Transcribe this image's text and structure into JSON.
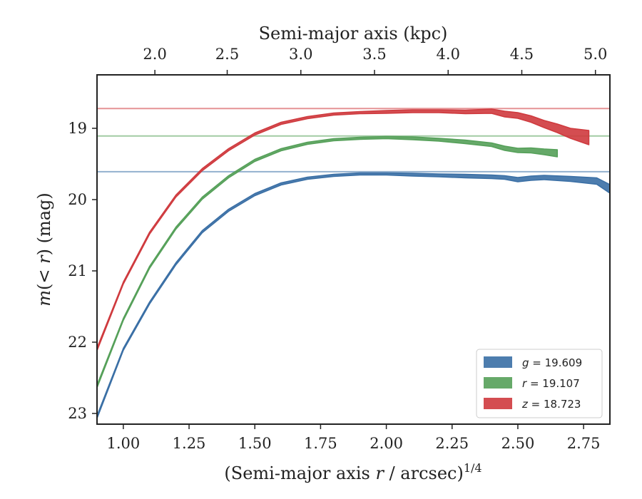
{
  "chart_data": {
    "type": "line",
    "xlabel": "(Semi-major axis r / arcsec)^1/4",
    "ylabel": "m(< r) (mag)",
    "top_xlabel": "Semi-major axis (kpc)",
    "xlim": [
      0.9,
      2.85
    ],
    "ylim": [
      23.15,
      18.25
    ],
    "y_inverted": true,
    "x_ticks": [
      "1.00",
      "1.25",
      "1.50",
      "1.75",
      "2.00",
      "2.25",
      "2.50",
      "2.75"
    ],
    "y_ticks": [
      "19",
      "20",
      "21",
      "22",
      "23"
    ],
    "top_x_ticks": [
      "2.0",
      "2.5",
      "3.0",
      "3.5",
      "4.0",
      "4.5",
      "5.0"
    ],
    "top_x_tick_positions": [
      1.12,
      1.395,
      1.675,
      1.955,
      2.235,
      2.515,
      2.795
    ],
    "legend_position": "lower-right",
    "grid": false,
    "series": [
      {
        "name": "g = 19.609",
        "legend_band": "g",
        "legend_value": "= 19.609",
        "color": "#3a6fa5",
        "asymptote": 19.609,
        "x": [
          0.9,
          1.0,
          1.1,
          1.2,
          1.3,
          1.4,
          1.5,
          1.6,
          1.7,
          1.8,
          1.9,
          2.0,
          2.1,
          2.2,
          2.3,
          2.4,
          2.45,
          2.5,
          2.55,
          2.6,
          2.7,
          2.8,
          2.85
        ],
        "y": [
          23.05,
          22.1,
          21.45,
          20.9,
          20.45,
          20.15,
          19.93,
          19.78,
          19.7,
          19.66,
          19.64,
          19.64,
          19.65,
          19.66,
          19.67,
          19.68,
          19.69,
          19.72,
          19.7,
          19.69,
          19.71,
          19.74,
          19.85
        ],
        "width": [
          0.04,
          0.03,
          0.03,
          0.03,
          0.03,
          0.03,
          0.03,
          0.03,
          0.03,
          0.03,
          0.03,
          0.03,
          0.04,
          0.04,
          0.05,
          0.05,
          0.05,
          0.06,
          0.06,
          0.06,
          0.07,
          0.09,
          0.12
        ]
      },
      {
        "name": "r = 19.107",
        "legend_band": "r",
        "legend_value": "= 19.107",
        "color": "#55a059",
        "asymptote": 19.107,
        "x": [
          0.9,
          1.0,
          1.1,
          1.2,
          1.3,
          1.4,
          1.5,
          1.6,
          1.7,
          1.8,
          1.9,
          2.0,
          2.1,
          2.2,
          2.3,
          2.4,
          2.45,
          2.5,
          2.55,
          2.6,
          2.65
        ],
        "y": [
          22.62,
          21.68,
          20.95,
          20.4,
          19.98,
          19.68,
          19.45,
          19.3,
          19.21,
          19.16,
          19.14,
          19.13,
          19.14,
          19.16,
          19.19,
          19.23,
          19.28,
          19.31,
          19.31,
          19.33,
          19.35
        ],
        "width": [
          0.04,
          0.03,
          0.03,
          0.03,
          0.03,
          0.03,
          0.03,
          0.03,
          0.03,
          0.03,
          0.03,
          0.03,
          0.04,
          0.04,
          0.05,
          0.05,
          0.06,
          0.06,
          0.07,
          0.08,
          0.1
        ]
      },
      {
        "name": "z = 18.723",
        "legend_band": "z",
        "legend_value": "= 18.723",
        "color": "#cf3a3e",
        "asymptote": 18.723,
        "x": [
          0.9,
          1.0,
          1.1,
          1.2,
          1.3,
          1.4,
          1.5,
          1.6,
          1.7,
          1.8,
          1.9,
          2.0,
          2.1,
          2.2,
          2.3,
          2.4,
          2.45,
          2.5,
          2.55,
          2.6,
          2.65,
          2.7,
          2.77
        ],
        "y": [
          22.1,
          21.17,
          20.47,
          19.95,
          19.58,
          19.3,
          19.08,
          18.93,
          18.85,
          18.8,
          18.78,
          18.77,
          18.76,
          18.76,
          18.77,
          18.76,
          18.8,
          18.82,
          18.87,
          18.94,
          19.0,
          19.07,
          19.13
        ],
        "width": [
          0.04,
          0.03,
          0.03,
          0.03,
          0.03,
          0.03,
          0.03,
          0.03,
          0.03,
          0.03,
          0.03,
          0.04,
          0.04,
          0.04,
          0.05,
          0.06,
          0.08,
          0.08,
          0.09,
          0.1,
          0.12,
          0.14,
          0.2
        ]
      }
    ]
  }
}
